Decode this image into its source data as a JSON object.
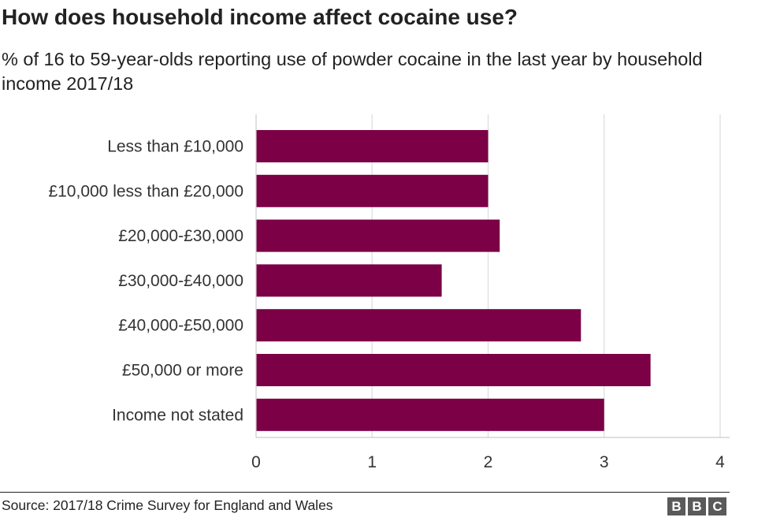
{
  "chart_data": {
    "type": "bar",
    "orientation": "horizontal",
    "title": "How does household income affect cocaine use?",
    "subtitle": "% of 16 to 59-year-olds reporting use of powder cocaine in the last year by household income 2017/18",
    "categories": [
      "Less than £10,000",
      "£10,000 less than £20,000",
      "£20,000-£30,000",
      "£30,000-£40,000",
      "£40,000-£50,000",
      "£50,000 or more",
      "Income not stated"
    ],
    "values": [
      2.0,
      2.0,
      2.1,
      1.6,
      2.8,
      3.4,
      3.0
    ],
    "xlim": [
      0,
      4
    ],
    "xticks": [
      "0",
      "1",
      "2",
      "3",
      "4"
    ],
    "xlabel": "",
    "ylabel": "",
    "grid": true,
    "bar_color": "#7b0046",
    "grid_color": "#dcdcdc"
  },
  "footer": {
    "source": "Source: 2017/18 Crime Survey for England and Wales",
    "logo_letters": [
      "B",
      "B",
      "C"
    ]
  }
}
